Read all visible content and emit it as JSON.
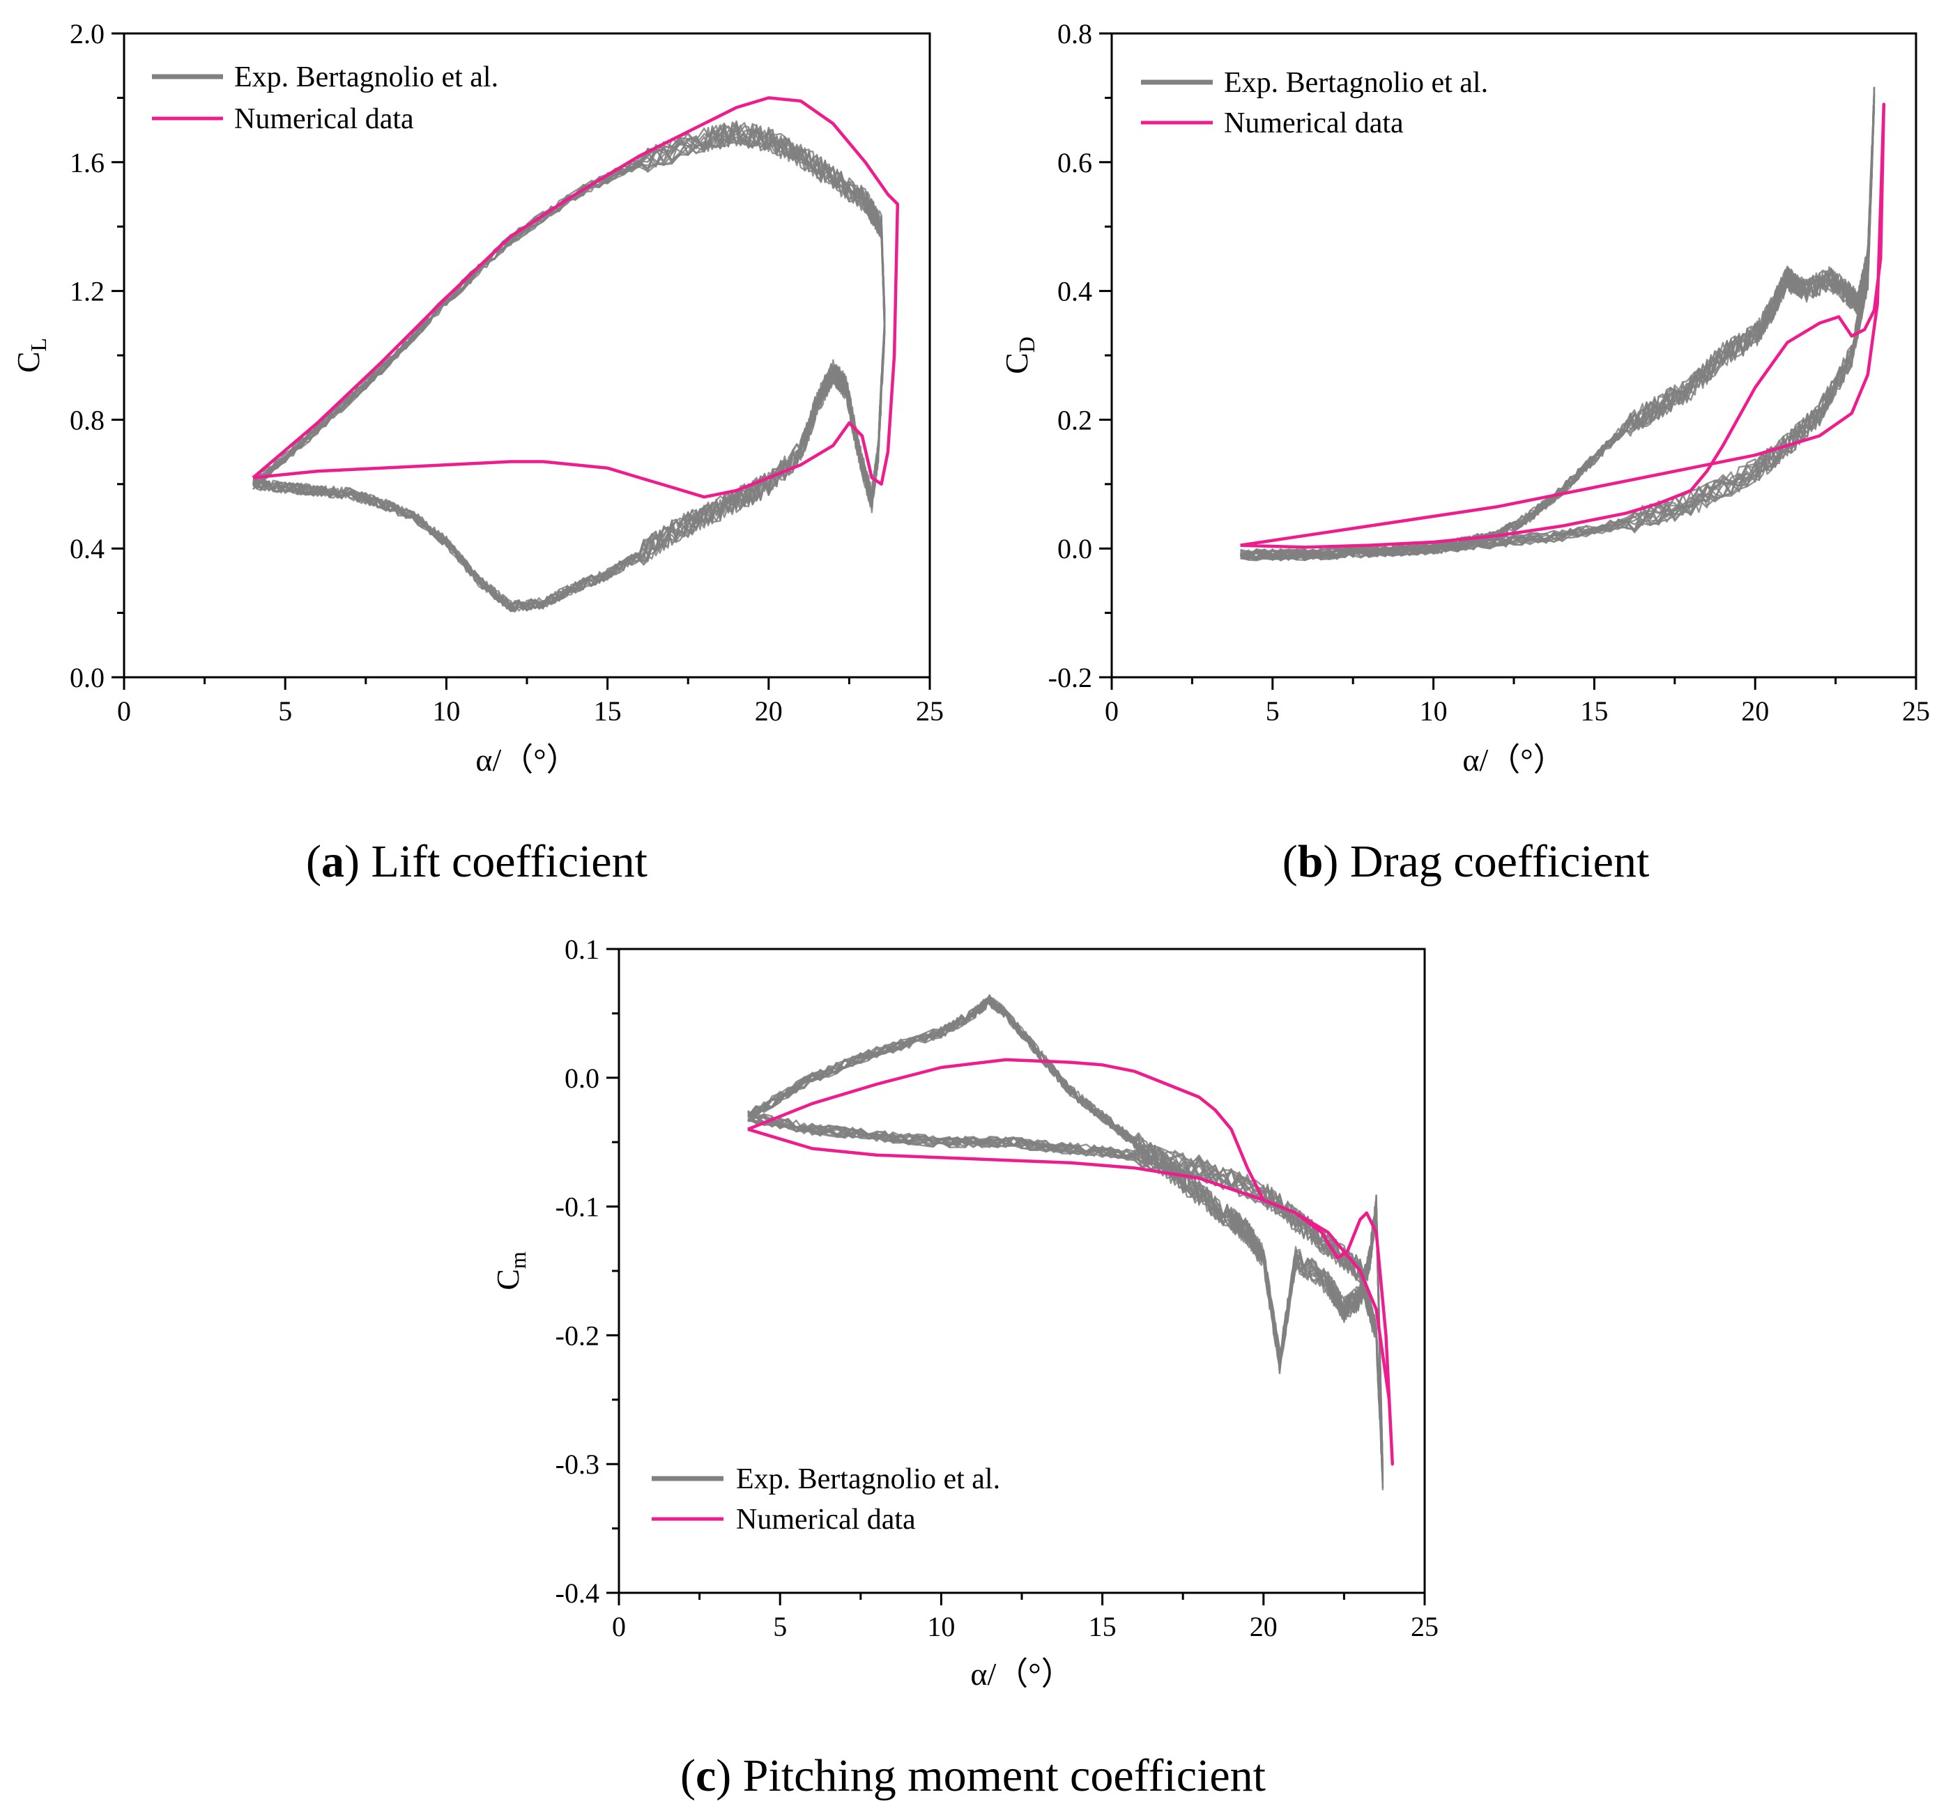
{
  "figure": {
    "panels": [
      "a",
      "b",
      "c"
    ]
  },
  "colors": {
    "experimental": "#808080",
    "numerical": "#ee1c8c",
    "axis": "#000000"
  },
  "chart_data": [
    {
      "id": "a",
      "type": "line",
      "caption": {
        "label": "a",
        "text": "Lift coefficient"
      },
      "xlabel": "α/（°）",
      "ylabel": {
        "base": "C",
        "sub": "L"
      },
      "xlim": [
        0,
        25
      ],
      "ylim": [
        0.0,
        2.0
      ],
      "xticks": [
        0,
        5,
        10,
        15,
        20,
        25
      ],
      "yticks": [
        0.0,
        0.4,
        0.8,
        1.2,
        1.6,
        2.0
      ],
      "xtick_labels": [
        "0",
        "5",
        "10",
        "15",
        "20",
        "25"
      ],
      "ytick_labels": [
        "0.0",
        "0.4",
        "0.8",
        "1.2",
        "1.6",
        "2.0"
      ],
      "legend_position": "top-left",
      "series": [
        {
          "name": "Exp. Bertagnolio et al.",
          "role": "experimental",
          "upstroke": [
            [
              4.0,
              0.6
            ],
            [
              6,
              0.77
            ],
            [
              8,
              0.96
            ],
            [
              10,
              1.17
            ],
            [
              12,
              1.36
            ],
            [
              14,
              1.5
            ],
            [
              16,
              1.6
            ],
            [
              18,
              1.67
            ],
            [
              19,
              1.69
            ],
            [
              20,
              1.67
            ],
            [
              21,
              1.62
            ],
            [
              22,
              1.55
            ],
            [
              23,
              1.48
            ],
            [
              23.5,
              1.4
            ],
            [
              23.6,
              1.1
            ]
          ],
          "downstroke": [
            [
              23.6,
              1.1
            ],
            [
              23.4,
              0.7
            ],
            [
              23.2,
              0.55
            ],
            [
              22.8,
              0.7
            ],
            [
              22.4,
              0.9
            ],
            [
              22,
              0.95
            ],
            [
              21.5,
              0.85
            ],
            [
              21,
              0.7
            ],
            [
              20,
              0.6
            ],
            [
              19,
              0.55
            ],
            [
              18,
              0.5
            ],
            [
              17,
              0.45
            ],
            [
              16,
              0.38
            ],
            [
              15,
              0.32
            ],
            [
              14,
              0.28
            ],
            [
              13,
              0.23
            ],
            [
              12,
              0.22
            ],
            [
              11,
              0.3
            ],
            [
              10,
              0.42
            ],
            [
              9,
              0.5
            ],
            [
              8,
              0.54
            ],
            [
              7,
              0.57
            ],
            [
              6,
              0.58
            ],
            [
              5,
              0.59
            ],
            [
              4.0,
              0.6
            ]
          ]
        },
        {
          "name": "Numerical data",
          "role": "numerical",
          "upstroke": [
            [
              4.0,
              0.62
            ],
            [
              6,
              0.79
            ],
            [
              8,
              0.98
            ],
            [
              10,
              1.18
            ],
            [
              12,
              1.37
            ],
            [
              14,
              1.5
            ],
            [
              16,
              1.62
            ],
            [
              18,
              1.72
            ],
            [
              19,
              1.77
            ],
            [
              20,
              1.8
            ],
            [
              21,
              1.79
            ],
            [
              22,
              1.72
            ],
            [
              23,
              1.6
            ],
            [
              23.7,
              1.5
            ],
            [
              24.0,
              1.47
            ]
          ],
          "downstroke": [
            [
              24.0,
              1.47
            ],
            [
              23.9,
              1.0
            ],
            [
              23.7,
              0.7
            ],
            [
              23.5,
              0.6
            ],
            [
              23.2,
              0.62
            ],
            [
              22.9,
              0.75
            ],
            [
              22.5,
              0.79
            ],
            [
              22,
              0.72
            ],
            [
              21,
              0.66
            ],
            [
              20,
              0.62
            ],
            [
              19,
              0.58
            ],
            [
              18,
              0.56
            ],
            [
              17,
              0.59
            ],
            [
              16,
              0.62
            ],
            [
              15,
              0.65
            ],
            [
              14,
              0.66
            ],
            [
              13,
              0.67
            ],
            [
              12,
              0.67
            ],
            [
              10,
              0.66
            ],
            [
              8,
              0.65
            ],
            [
              6,
              0.64
            ],
            [
              4.0,
              0.62
            ]
          ]
        }
      ]
    },
    {
      "id": "b",
      "type": "line",
      "caption": {
        "label": "b",
        "text": "Drag coefficient"
      },
      "xlabel": "α/（°）",
      "ylabel": {
        "base": "C",
        "sub": "D"
      },
      "xlim": [
        0,
        25
      ],
      "ylim": [
        -0.2,
        0.8
      ],
      "xticks": [
        0,
        5,
        10,
        15,
        20,
        25
      ],
      "yticks": [
        -0.2,
        0.0,
        0.2,
        0.4,
        0.6,
        0.8
      ],
      "xtick_labels": [
        "0",
        "5",
        "10",
        "15",
        "20",
        "25"
      ],
      "ytick_labels": [
        "-0.2",
        "0.0",
        "0.2",
        "0.4",
        "0.6",
        "0.8"
      ],
      "legend_position": "top-left",
      "series": [
        {
          "name": "Exp. Bertagnolio et al.",
          "role": "experimental",
          "upstroke": [
            [
              4.0,
              -0.01
            ],
            [
              6,
              -0.01
            ],
            [
              8,
              -0.005
            ],
            [
              10,
              0.0
            ],
            [
              12,
              0.01
            ],
            [
              14,
              0.02
            ],
            [
              16,
              0.04
            ],
            [
              18,
              0.07
            ],
            [
              20,
              0.12
            ],
            [
              21,
              0.16
            ],
            [
              22,
              0.21
            ],
            [
              23,
              0.3
            ],
            [
              23.5,
              0.42
            ],
            [
              23.7,
              0.7
            ]
          ],
          "downstroke": [
            [
              23.7,
              0.7
            ],
            [
              23.5,
              0.45
            ],
            [
              23.2,
              0.38
            ],
            [
              22.8,
              0.4
            ],
            [
              22.3,
              0.42
            ],
            [
              21.5,
              0.4
            ],
            [
              21,
              0.42
            ],
            [
              20.5,
              0.37
            ],
            [
              20,
              0.33
            ],
            [
              19,
              0.3
            ],
            [
              18,
              0.25
            ],
            [
              17,
              0.22
            ],
            [
              16,
              0.19
            ],
            [
              15,
              0.14
            ],
            [
              14,
              0.09
            ],
            [
              13,
              0.05
            ],
            [
              12,
              0.02
            ],
            [
              11,
              0.01
            ],
            [
              10,
              0.0
            ],
            [
              8,
              -0.005
            ],
            [
              6,
              -0.01
            ],
            [
              4.0,
              -0.01
            ]
          ]
        },
        {
          "name": "Numerical data",
          "role": "numerical",
          "upstroke": [
            [
              4.0,
              0.005
            ],
            [
              6,
              0.02
            ],
            [
              8,
              0.035
            ],
            [
              10,
              0.05
            ],
            [
              12,
              0.065
            ],
            [
              14,
              0.085
            ],
            [
              16,
              0.105
            ],
            [
              18,
              0.125
            ],
            [
              20,
              0.145
            ],
            [
              21,
              0.16
            ],
            [
              22,
              0.175
            ],
            [
              23,
              0.21
            ],
            [
              23.5,
              0.27
            ],
            [
              23.8,
              0.38
            ],
            [
              24.0,
              0.69
            ]
          ],
          "downstroke": [
            [
              24.0,
              0.69
            ],
            [
              23.9,
              0.45
            ],
            [
              23.7,
              0.37
            ],
            [
              23.4,
              0.34
            ],
            [
              23.0,
              0.33
            ],
            [
              22.6,
              0.36
            ],
            [
              22,
              0.35
            ],
            [
              21,
              0.32
            ],
            [
              20,
              0.25
            ],
            [
              19,
              0.16
            ],
            [
              18.5,
              0.12
            ],
            [
              18,
              0.09
            ],
            [
              17,
              0.07
            ],
            [
              16,
              0.055
            ],
            [
              14,
              0.035
            ],
            [
              12,
              0.02
            ],
            [
              10,
              0.01
            ],
            [
              8,
              0.005
            ],
            [
              6,
              0.002
            ],
            [
              4.0,
              0.005
            ]
          ]
        }
      ]
    },
    {
      "id": "c",
      "type": "line",
      "caption": {
        "label": "c",
        "text": "Pitching moment coefficient"
      },
      "xlabel": "α/（°）",
      "ylabel": {
        "base": "C",
        "sub": "m"
      },
      "xlim": [
        0,
        25
      ],
      "ylim": [
        -0.4,
        0.1
      ],
      "xticks": [
        0,
        5,
        10,
        15,
        20,
        25
      ],
      "yticks": [
        -0.4,
        -0.3,
        -0.2,
        -0.1,
        0.0,
        0.1
      ],
      "xtick_labels": [
        "0",
        "5",
        "10",
        "15",
        "20",
        "25"
      ],
      "ytick_labels": [
        "-0.4",
        "-0.3",
        "-0.2",
        "-0.1",
        "0.0",
        "0.1"
      ],
      "legend_position": "bottom-left",
      "series": [
        {
          "name": "Exp. Bertagnolio et al.",
          "role": "experimental",
          "upstroke": [
            [
              4.0,
              -0.03
            ],
            [
              6,
              -0.04
            ],
            [
              8,
              -0.045
            ],
            [
              10,
              -0.05
            ],
            [
              12,
              -0.05
            ],
            [
              14,
              -0.055
            ],
            [
              16,
              -0.06
            ],
            [
              18,
              -0.07
            ],
            [
              20,
              -0.09
            ],
            [
              21,
              -0.11
            ],
            [
              22,
              -0.13
            ],
            [
              23,
              -0.15
            ],
            [
              23.5,
              -0.2
            ],
            [
              23.7,
              -0.31
            ]
          ],
          "downstroke": [
            [
              23.7,
              -0.31
            ],
            [
              23.5,
              -0.1
            ],
            [
              23.3,
              -0.14
            ],
            [
              23,
              -0.17
            ],
            [
              22.5,
              -0.18
            ],
            [
              22,
              -0.16
            ],
            [
              21,
              -0.14
            ],
            [
              20.5,
              -0.22
            ],
            [
              20,
              -0.14
            ],
            [
              19.5,
              -0.12
            ],
            [
              19,
              -0.11
            ],
            [
              18,
              -0.09
            ],
            [
              17,
              -0.07
            ],
            [
              16,
              -0.05
            ],
            [
              15,
              -0.03
            ],
            [
              14,
              -0.01
            ],
            [
              13,
              0.02
            ],
            [
              12,
              0.05
            ],
            [
              11.5,
              0.06
            ],
            [
              11,
              0.05
            ],
            [
              10,
              0.035
            ],
            [
              8,
              0.02
            ],
            [
              6,
              0.0
            ],
            [
              4.0,
              -0.03
            ]
          ]
        },
        {
          "name": "Numerical data",
          "role": "numerical",
          "upstroke": [
            [
              4.0,
              -0.04
            ],
            [
              6,
              -0.055
            ],
            [
              8,
              -0.06
            ],
            [
              10,
              -0.062
            ],
            [
              12,
              -0.064
            ],
            [
              14,
              -0.066
            ],
            [
              16,
              -0.07
            ],
            [
              18,
              -0.078
            ],
            [
              20,
              -0.095
            ],
            [
              21,
              -0.105
            ],
            [
              22,
              -0.12
            ],
            [
              23,
              -0.15
            ],
            [
              23.5,
              -0.18
            ],
            [
              23.9,
              -0.25
            ],
            [
              24.0,
              -0.3
            ]
          ],
          "downstroke": [
            [
              24.0,
              -0.3
            ],
            [
              23.8,
              -0.2
            ],
            [
              23.5,
              -0.12
            ],
            [
              23.2,
              -0.105
            ],
            [
              23.0,
              -0.11
            ],
            [
              22.6,
              -0.135
            ],
            [
              22.3,
              -0.14
            ],
            [
              21.8,
              -0.12
            ],
            [
              21,
              -0.105
            ],
            [
              20,
              -0.095
            ],
            [
              19.5,
              -0.07
            ],
            [
              19,
              -0.04
            ],
            [
              18.5,
              -0.025
            ],
            [
              18,
              -0.015
            ],
            [
              17,
              -0.005
            ],
            [
              16,
              0.005
            ],
            [
              15,
              0.01
            ],
            [
              14,
              0.012
            ],
            [
              12,
              0.014
            ],
            [
              10,
              0.008
            ],
            [
              8,
              -0.005
            ],
            [
              6,
              -0.02
            ],
            [
              4.0,
              -0.04
            ]
          ]
        }
      ]
    }
  ]
}
